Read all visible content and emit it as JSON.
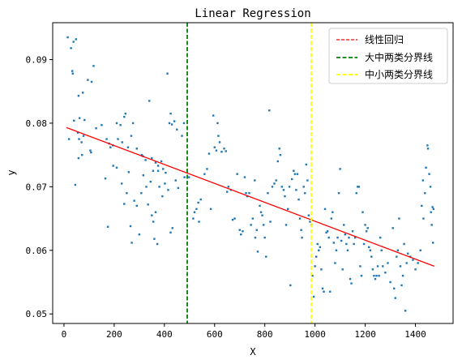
{
  "chart_data": {
    "type": "scatter",
    "title": "Linear Regression",
    "xlabel": "X",
    "ylabel": "y",
    "xlim": [
      -45,
      1550
    ],
    "ylim": [
      0.0485,
      0.0958
    ],
    "xticks": [
      0,
      200,
      400,
      600,
      800,
      1000,
      1200,
      1400
    ],
    "yticks": [
      0.05,
      0.06,
      0.07,
      0.08,
      0.09
    ],
    "ytick_labels": [
      "0.05",
      "0.06",
      "0.07",
      "0.08",
      "0.09"
    ],
    "grid": false,
    "legend_position": "top-right",
    "scatter_color": "#1f77b4",
    "series": [
      {
        "kind": "points",
        "points": [
          [
            15,
            0.0935
          ],
          [
            28,
            0.0918
          ],
          [
            38,
            0.0928
          ],
          [
            48,
            0.0932
          ],
          [
            33,
            0.0882
          ],
          [
            35,
            0.0878
          ],
          [
            58,
            0.0843
          ],
          [
            75,
            0.0848
          ],
          [
            95,
            0.0868
          ],
          [
            110,
            0.0865
          ],
          [
            118,
            0.089
          ],
          [
            82,
            0.0805
          ],
          [
            62,
            0.0808
          ],
          [
            20,
            0.0775
          ],
          [
            40,
            0.0804
          ],
          [
            55,
            0.0785
          ],
          [
            60,
            0.0775
          ],
          [
            70,
            0.077
          ],
          [
            78,
            0.078
          ],
          [
            105,
            0.0757
          ],
          [
            108,
            0.0754
          ],
          [
            128,
            0.0792
          ],
          [
            150,
            0.0797
          ],
          [
            170,
            0.0775
          ],
          [
            185,
            0.0762
          ],
          [
            180,
            0.0768
          ],
          [
            195,
            0.0765
          ],
          [
            210,
            0.08
          ],
          [
            215,
            0.0775
          ],
          [
            225,
            0.0797
          ],
          [
            232,
            0.077
          ],
          [
            240,
            0.081
          ],
          [
            245,
            0.0815
          ],
          [
            255,
            0.0762
          ],
          [
            268,
            0.078
          ],
          [
            275,
            0.08
          ],
          [
            290,
            0.076
          ],
          [
            310,
            0.075
          ],
          [
            315,
            0.0748
          ],
          [
            325,
            0.0742
          ],
          [
            340,
            0.0835
          ],
          [
            350,
            0.0745
          ],
          [
            355,
            0.0725
          ],
          [
            365,
            0.0738
          ],
          [
            375,
            0.0733
          ],
          [
            388,
            0.074
          ],
          [
            395,
            0.0728
          ],
          [
            405,
            0.0722
          ],
          [
            412,
            0.0878
          ],
          [
            420,
            0.08
          ],
          [
            425,
            0.0815
          ],
          [
            430,
            0.0798
          ],
          [
            440,
            0.0803
          ],
          [
            450,
            0.079
          ],
          [
            470,
            0.078
          ],
          [
            478,
            0.08
          ],
          [
            45,
            0.0703
          ],
          [
            58,
            0.0745
          ],
          [
            72,
            0.075
          ],
          [
            165,
            0.0713
          ],
          [
            175,
            0.0637
          ],
          [
            196,
            0.0733
          ],
          [
            210,
            0.073
          ],
          [
            230,
            0.0705
          ],
          [
            240,
            0.0673
          ],
          [
            250,
            0.069
          ],
          [
            258,
            0.0723
          ],
          [
            265,
            0.0638
          ],
          [
            270,
            0.0612
          ],
          [
            280,
            0.0678
          ],
          [
            290,
            0.067
          ],
          [
            300,
            0.0625
          ],
          [
            308,
            0.069
          ],
          [
            316,
            0.0718
          ],
          [
            328,
            0.07
          ],
          [
            335,
            0.0672
          ],
          [
            345,
            0.0708
          ],
          [
            350,
            0.0655
          ],
          [
            356,
            0.0645
          ],
          [
            360,
            0.0618
          ],
          [
            365,
            0.066
          ],
          [
            372,
            0.061
          ],
          [
            375,
            0.0725
          ],
          [
            380,
            0.07
          ],
          [
            392,
            0.0685
          ],
          [
            402,
            0.0705
          ],
          [
            415,
            0.0695
          ],
          [
            425,
            0.0628
          ],
          [
            432,
            0.0635
          ],
          [
            445,
            0.071
          ],
          [
            455,
            0.0698
          ],
          [
            480,
            0.0715
          ],
          [
            498,
            0.0715
          ],
          [
            515,
            0.065
          ],
          [
            520,
            0.066
          ],
          [
            528,
            0.0665
          ],
          [
            535,
            0.0675
          ],
          [
            538,
            0.0645
          ],
          [
            545,
            0.068
          ],
          [
            560,
            0.072
          ],
          [
            570,
            0.0728
          ],
          [
            578,
            0.0752
          ],
          [
            585,
            0.0665
          ],
          [
            595,
            0.0812
          ],
          [
            600,
            0.0762
          ],
          [
            607,
            0.0757
          ],
          [
            612,
            0.08
          ],
          [
            615,
            0.078
          ],
          [
            620,
            0.077
          ],
          [
            628,
            0.0755
          ],
          [
            638,
            0.076
          ],
          [
            645,
            0.0756
          ],
          [
            650,
            0.0692
          ],
          [
            655,
            0.07
          ],
          [
            665,
            0.0695
          ],
          [
            672,
            0.0648
          ],
          [
            680,
            0.065
          ],
          [
            690,
            0.072
          ],
          [
            700,
            0.0632
          ],
          [
            705,
            0.0625
          ],
          [
            712,
            0.063
          ],
          [
            720,
            0.0715
          ],
          [
            725,
            0.069
          ],
          [
            730,
            0.0685
          ],
          [
            738,
            0.069
          ],
          [
            745,
            0.064
          ],
          [
            752,
            0.065
          ],
          [
            760,
            0.071
          ],
          [
            762,
            0.062
          ],
          [
            768,
            0.0632
          ],
          [
            772,
            0.0598
          ],
          [
            780,
            0.067
          ],
          [
            785,
            0.066
          ],
          [
            790,
            0.0655
          ],
          [
            795,
            0.064
          ],
          [
            800,
            0.062
          ],
          [
            805,
            0.059
          ],
          [
            812,
            0.069
          ],
          [
            818,
            0.082
          ],
          [
            822,
            0.0645
          ],
          [
            830,
            0.07
          ],
          [
            838,
            0.0705
          ],
          [
            845,
            0.071
          ],
          [
            852,
            0.074
          ],
          [
            858,
            0.076
          ],
          [
            862,
            0.075
          ],
          [
            868,
            0.07
          ],
          [
            875,
            0.0695
          ],
          [
            880,
            0.0685
          ],
          [
            885,
            0.064
          ],
          [
            892,
            0.0665
          ],
          [
            898,
            0.07
          ],
          [
            902,
            0.0545
          ],
          [
            908,
            0.0712
          ],
          [
            915,
            0.0725
          ],
          [
            920,
            0.072
          ],
          [
            925,
            0.0695
          ],
          [
            930,
            0.072
          ],
          [
            935,
            0.068
          ],
          [
            940,
            0.065
          ],
          [
            945,
            0.0632
          ],
          [
            948,
            0.062
          ],
          [
            955,
            0.07
          ],
          [
            960,
            0.069
          ],
          [
            965,
            0.0735
          ],
          [
            970,
            0.071
          ],
          [
            975,
            0.0655
          ],
          [
            980,
            0.0645
          ],
          [
            985,
            0.064
          ],
          [
            990,
            0.056
          ],
          [
            995,
            0.0527
          ],
          [
            1000,
            0.0575
          ],
          [
            1005,
            0.059
          ],
          [
            1010,
            0.061
          ],
          [
            1015,
            0.06
          ],
          [
            1020,
            0.0605
          ],
          [
            1025,
            0.057
          ],
          [
            1030,
            0.054
          ],
          [
            1035,
            0.0535
          ],
          [
            1040,
            0.0665
          ],
          [
            1045,
            0.0628
          ],
          [
            1050,
            0.063
          ],
          [
            1055,
            0.062
          ],
          [
            1060,
            0.0535
          ],
          [
            1065,
            0.065
          ],
          [
            1070,
            0.066
          ],
          [
            1075,
            0.0612
          ],
          [
            1080,
            0.058
          ],
          [
            1085,
            0.06
          ],
          [
            1090,
            0.062
          ],
          [
            1095,
            0.069
          ],
          [
            1100,
            0.0728
          ],
          [
            1105,
            0.0615
          ],
          [
            1110,
            0.057
          ],
          [
            1115,
            0.064
          ],
          [
            1120,
            0.0625
          ],
          [
            1125,
            0.061
          ],
          [
            1130,
            0.06
          ],
          [
            1135,
            0.062
          ],
          [
            1140,
            0.0555
          ],
          [
            1145,
            0.0548
          ],
          [
            1150,
            0.063
          ],
          [
            1155,
            0.061
          ],
          [
            1160,
            0.062
          ],
          [
            1165,
            0.069
          ],
          [
            1170,
            0.07
          ],
          [
            1175,
            0.07
          ],
          [
            1180,
            0.0575
          ],
          [
            1185,
            0.056
          ],
          [
            1190,
            0.066
          ],
          [
            1195,
            0.061
          ],
          [
            1200,
            0.064
          ],
          [
            1205,
            0.063
          ],
          [
            1210,
            0.0635
          ],
          [
            1215,
            0.0605
          ],
          [
            1220,
            0.06
          ],
          [
            1225,
            0.059
          ],
          [
            1230,
            0.057
          ],
          [
            1235,
            0.056
          ],
          [
            1240,
            0.0555
          ],
          [
            1245,
            0.056
          ],
          [
            1250,
            0.0575
          ],
          [
            1255,
            0.056
          ],
          [
            1260,
            0.062
          ],
          [
            1265,
            0.06
          ],
          [
            1270,
            0.0575
          ],
          [
            1280,
            0.0565
          ],
          [
            1290,
            0.058
          ],
          [
            1300,
            0.055
          ],
          [
            1310,
            0.0635
          ],
          [
            1315,
            0.054
          ],
          [
            1320,
            0.0525
          ],
          [
            1325,
            0.059
          ],
          [
            1330,
            0.06
          ],
          [
            1335,
            0.065
          ],
          [
            1340,
            0.0575
          ],
          [
            1345,
            0.0545
          ],
          [
            1350,
            0.056
          ],
          [
            1355,
            0.061
          ],
          [
            1360,
            0.0505
          ],
          [
            1365,
            0.058
          ],
          [
            1370,
            0.0595
          ],
          [
            1380,
            0.059
          ],
          [
            1390,
            0.0585
          ],
          [
            1400,
            0.057
          ],
          [
            1410,
            0.058
          ],
          [
            1420,
            0.06
          ],
          [
            1425,
            0.067
          ],
          [
            1430,
            0.071
          ],
          [
            1432,
            0.065
          ],
          [
            1438,
            0.069
          ],
          [
            1442,
            0.073
          ],
          [
            1448,
            0.0765
          ],
          [
            1450,
            0.076
          ],
          [
            1455,
            0.072
          ],
          [
            1460,
            0.07
          ],
          [
            1462,
            0.066
          ],
          [
            1465,
            0.064
          ],
          [
            1468,
            0.0668
          ],
          [
            1470,
            0.0612
          ],
          [
            1472,
            0.0665
          ]
        ]
      },
      {
        "kind": "line",
        "name": "线性回归",
        "color": "#ff0000",
        "style": "dashed",
        "x": [
          10,
          1475
        ],
        "y": [
          0.0793,
          0.0575
        ]
      },
      {
        "kind": "vline",
        "name": "大中两类分界线",
        "color": "#008000",
        "style": "dashed",
        "x": 491
      },
      {
        "kind": "vline",
        "name": "中小两类分界线",
        "color": "#ffff00",
        "style": "dashed",
        "x": 985
      }
    ]
  }
}
